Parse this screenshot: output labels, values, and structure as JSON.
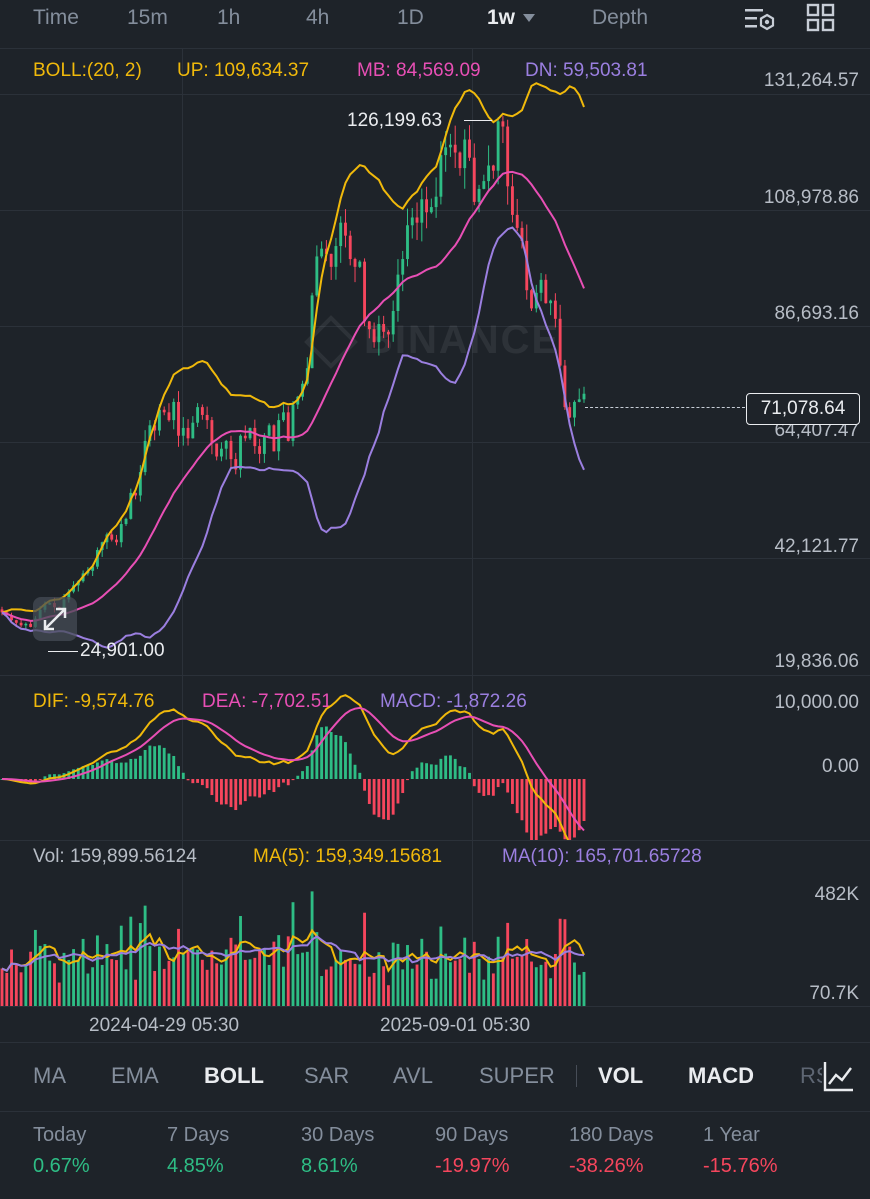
{
  "toolbar": {
    "time_label": "Time",
    "intervals": [
      "15m",
      "1h",
      "4h",
      "1D",
      "1w"
    ],
    "active_interval": "1w",
    "depth_label": "Depth"
  },
  "boll": {
    "label": "BOLL:(20, 2)",
    "up": "UP: 109,634.37",
    "mb": "MB: 84,569.09",
    "dn": "DN: 59,503.81",
    "colors": {
      "up": "#f0b90b",
      "mb": "#e84fb5",
      "dn": "#9b7fe0"
    }
  },
  "price_axis": [
    "131,264.57",
    "108,978.86",
    "86,693.16",
    "64,407.47",
    "42,121.77",
    "19,836.06"
  ],
  "current_price": "71,078.64",
  "high_label": "126,199.63",
  "low_label": "24,901.00",
  "watermark": "BINANCE",
  "macd": {
    "dif": "DIF: -9,574.76",
    "dea": "DEA: -7,702.51",
    "macd": "MACD: -1,872.26",
    "axis": [
      "10,000.00",
      "0.00"
    ]
  },
  "volume": {
    "vol": "Vol: 159,899.56124",
    "ma5": "MA(5): 159,349.15681",
    "ma10": "MA(10): 165,701.65728",
    "axis": [
      "482K",
      "70.7K"
    ]
  },
  "x_axis": [
    "2024-04-29 05:30",
    "2025-09-01 05:30"
  ],
  "indicator_tabs": [
    "MA",
    "EMA",
    "BOLL",
    "SAR",
    "AVL",
    "SUPER",
    "VOL",
    "MACD",
    "RS"
  ],
  "active_tabs": [
    "BOLL",
    "VOL",
    "MACD"
  ],
  "stats": [
    {
      "label": "Today",
      "value": "0.67%",
      "dir": "up"
    },
    {
      "label": "7 Days",
      "value": "4.85%",
      "dir": "up"
    },
    {
      "label": "30 Days",
      "value": "8.61%",
      "dir": "up"
    },
    {
      "label": "90 Days",
      "value": "-19.97%",
      "dir": "dn"
    },
    {
      "label": "180 Days",
      "value": "-38.26%",
      "dir": "dn"
    },
    {
      "label": "1 Year",
      "value": "-15.76%",
      "dir": "dn"
    }
  ],
  "colors": {
    "bull": "#2ebd85",
    "bear": "#f6465d",
    "background": "#1e2329"
  },
  "chart_data": {
    "type": "candlestick",
    "interval": "1w",
    "x_ticks": [
      "2024-04-29 05:30",
      "2025-09-01 05:30"
    ],
    "ylim": [
      19836.06,
      131264.57
    ],
    "candles_close_approx": [
      29000,
      28500,
      27500,
      27000,
      26500,
      26800,
      26200,
      27800,
      29500,
      30500,
      30800,
      30000,
      29800,
      31500,
      33000,
      34200,
      35000,
      36500,
      37000,
      37800,
      41000,
      42500,
      44000,
      43000,
      42500,
      46000,
      47000,
      52000,
      51500,
      56000,
      62000,
      65000,
      64000,
      68000,
      67500,
      66000,
      69500,
      63000,
      64500,
      62500,
      65500,
      68500,
      67000,
      66000,
      61500,
      59000,
      60500,
      62000,
      58500,
      56500,
      63000,
      62500,
      64500,
      61000,
      59500,
      63000,
      65000,
      60000,
      66000,
      67500,
      62000,
      69000,
      70500,
      73000,
      76000,
      90000,
      97500,
      99000,
      98000,
      95500,
      99500,
      104000,
      101500,
      97000,
      95500,
      96500,
      85000,
      83500,
      81000,
      84500,
      83000,
      82500,
      87000,
      94000,
      97000,
      103500,
      105000,
      104000,
      108500,
      106000,
      107000,
      109000,
      117000,
      118500,
      119000,
      117500,
      114500,
      120000,
      116500,
      108000,
      110500,
      112000,
      115000,
      114000,
      123500,
      122500,
      111000,
      105500,
      103000,
      100500,
      91000,
      87500,
      90500,
      93000,
      88500,
      89000,
      85500,
      76500,
      68500,
      66500,
      69500,
      70000,
      71078.64
    ],
    "high": 126199.63,
    "low": 24901.0,
    "last": 71078.64,
    "boll": {
      "period": 20,
      "k": 2,
      "up": 109634.37,
      "mb": 84569.09,
      "dn": 59503.81
    },
    "macd": {
      "dif": -9574.76,
      "dea": -7702.51,
      "macd": -1872.26,
      "ylim": [
        -5000,
        10000
      ]
    },
    "volume": {
      "last": 159899.56124,
      "ma5": 159349.15681,
      "ma10": 165701.65728,
      "ylim": [
        70700,
        482000
      ]
    }
  }
}
